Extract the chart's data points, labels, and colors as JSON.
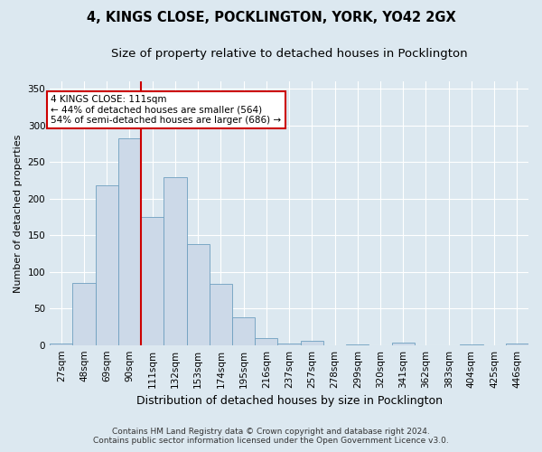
{
  "title1": "4, KINGS CLOSE, POCKLINGTON, YORK, YO42 2GX",
  "title2": "Size of property relative to detached houses in Pocklington",
  "xlabel": "Distribution of detached houses by size in Pocklington",
  "ylabel": "Number of detached properties",
  "categories": [
    "27sqm",
    "48sqm",
    "69sqm",
    "90sqm",
    "111sqm",
    "132sqm",
    "153sqm",
    "174sqm",
    "195sqm",
    "216sqm",
    "237sqm",
    "257sqm",
    "278sqm",
    "299sqm",
    "320sqm",
    "341sqm",
    "362sqm",
    "383sqm",
    "404sqm",
    "425sqm",
    "446sqm"
  ],
  "values": [
    2,
    85,
    218,
    283,
    175,
    230,
    138,
    83,
    38,
    10,
    2,
    6,
    0,
    1,
    0,
    3,
    0,
    0,
    1,
    0,
    2
  ],
  "bar_color": "#ccd9e8",
  "bar_edge_color": "#6e9fbf",
  "vline_color": "#cc0000",
  "vline_x": 3.5,
  "annotation_lines": [
    "4 KINGS CLOSE: 111sqm",
    "← 44% of detached houses are smaller (564)",
    "54% of semi-detached houses are larger (686) →"
  ],
  "annotation_box_color": "#ffffff",
  "annotation_box_edge": "#cc0000",
  "background_color": "#dce8f0",
  "grid_color": "#ffffff",
  "footer1": "Contains HM Land Registry data © Crown copyright and database right 2024.",
  "footer2": "Contains public sector information licensed under the Open Government Licence v3.0.",
  "ylim": [
    0,
    360
  ],
  "yticks": [
    0,
    50,
    100,
    150,
    200,
    250,
    300,
    350
  ],
  "title1_fontsize": 10.5,
  "title2_fontsize": 9.5,
  "ylabel_fontsize": 8,
  "xlabel_fontsize": 9,
  "tick_fontsize": 7.5,
  "annotation_fontsize": 7.5,
  "footer_fontsize": 6.5
}
